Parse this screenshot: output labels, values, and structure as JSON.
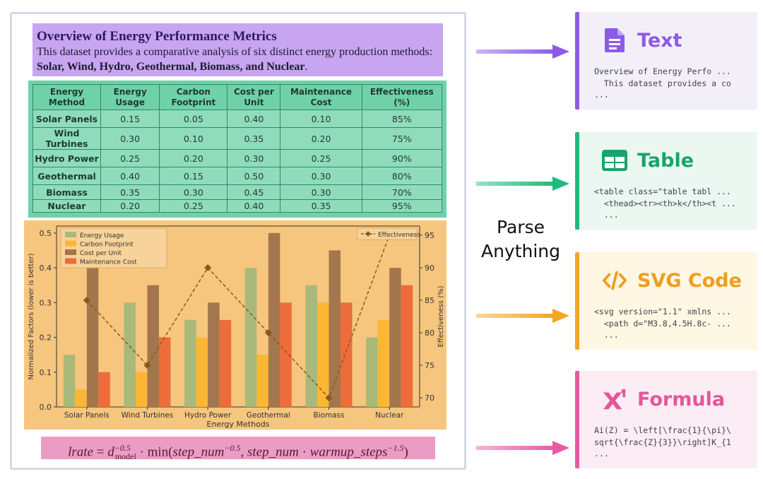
{
  "document": {
    "text_block": {
      "title": "Overview of Energy Performance Metrics",
      "body_prefix": "This dataset provides a comparative analysis of six distinct energy production methods: ",
      "body_bold": "Solar, Wind, Hydro, Geothermal, Biomass, and Nuclear",
      "body_suffix": "."
    },
    "table": {
      "headers": [
        "Energy Method",
        "Energy Usage",
        "Carbon Footprint",
        "Cost per Unit",
        "Maintenance Cost",
        "Effectiveness (%)"
      ],
      "rows": [
        [
          "Solar Panels",
          "0.15",
          "0.05",
          "0.40",
          "0.10",
          "85%"
        ],
        [
          "Wind Turbines",
          "0.30",
          "0.10",
          "0.35",
          "0.20",
          "75%"
        ],
        [
          "Hydro Power",
          "0.25",
          "0.20",
          "0.30",
          "0.25",
          "90%"
        ],
        [
          "Geothermal",
          "0.40",
          "0.15",
          "0.50",
          "0.30",
          "80%"
        ],
        [
          "Biomass",
          "0.35",
          "0.30",
          "0.45",
          "0.30",
          "70%"
        ],
        [
          "Nuclear",
          "0.20",
          "0.25",
          "0.40",
          "0.35",
          "95%"
        ]
      ]
    },
    "formula": {
      "lhs": "lrate",
      "eq": " = ",
      "d": "d",
      "d_sup": "−0.5",
      "d_sub": "model",
      "dot1": " · ",
      "min": "min",
      "open": "(",
      "step1": "step_num",
      "step1_sup": "−0.5",
      "comma": ", ",
      "step2": "step_num",
      "dot2": " · ",
      "warm": "warmup_steps",
      "warm_sup": "−1.5",
      "close": ")"
    }
  },
  "chart_data": {
    "type": "bar",
    "categories": [
      "Solar Panels",
      "Wind Turbines",
      "Hydro Power",
      "Geothermal",
      "Biomass",
      "Nuclear"
    ],
    "series": [
      {
        "name": "Energy Usage",
        "values": [
          0.15,
          0.3,
          0.25,
          0.4,
          0.35,
          0.2
        ],
        "color": "#a9b97a"
      },
      {
        "name": "Carbon Footprint",
        "values": [
          0.05,
          0.1,
          0.2,
          0.15,
          0.3,
          0.25
        ],
        "color": "#fbb634"
      },
      {
        "name": "Cost per Unit",
        "values": [
          0.4,
          0.35,
          0.3,
          0.5,
          0.45,
          0.4
        ],
        "color": "#a3764d"
      },
      {
        "name": "Maintenance Cost",
        "values": [
          0.1,
          0.2,
          0.25,
          0.3,
          0.3,
          0.35
        ],
        "color": "#ec6d3a"
      }
    ],
    "line_series": {
      "name": "Effectiveness",
      "values": [
        85,
        75,
        90,
        80,
        70,
        95
      ],
      "color": "#8a5a1a",
      "axis": "right"
    },
    "xlabel": "Energy Methods",
    "ylabel": "Normalized Factors (lower is better)",
    "y2label": "Effectiveness (%)",
    "ylim": [
      0,
      0.52
    ],
    "y2lim": [
      68.6,
      96.4
    ],
    "yticks": [
      "0.0",
      "0.1",
      "0.2",
      "0.3",
      "0.4",
      "0.5"
    ],
    "y2ticks": [
      "70",
      "75",
      "80",
      "85",
      "90",
      "95"
    ],
    "legend": "top-left",
    "legend2": "top-right",
    "grid": false
  },
  "parse_label": {
    "line1": "Parse",
    "line2": "Anything"
  },
  "cards": {
    "text": {
      "label": "Text",
      "code": "Overview of Energy Perfo ...\n  This dataset provides a co\n..."
    },
    "table": {
      "label": "Table",
      "code": "<table class=\"table tabl ...\n  <thead><tr><th>k</th><t ...\n  ..."
    },
    "svg": {
      "label": "SVG Code",
      "code": "<svg version=\"1.1\" xmlns ...\n  <path d=\"M3.8,4.5H.8c- ...\n  ..."
    },
    "formula": {
      "label": "Formula",
      "code": "Ai(Z) = \\left[\\frac{1}{\\pi}\\\nsqrt{\\frac{Z}{3}}\\right]K_{1\n..."
    }
  },
  "colors": {
    "text": "#8d5ae6",
    "table": "#1ebb7c",
    "svg": "#f2a623",
    "formula": "#e85aa1"
  }
}
